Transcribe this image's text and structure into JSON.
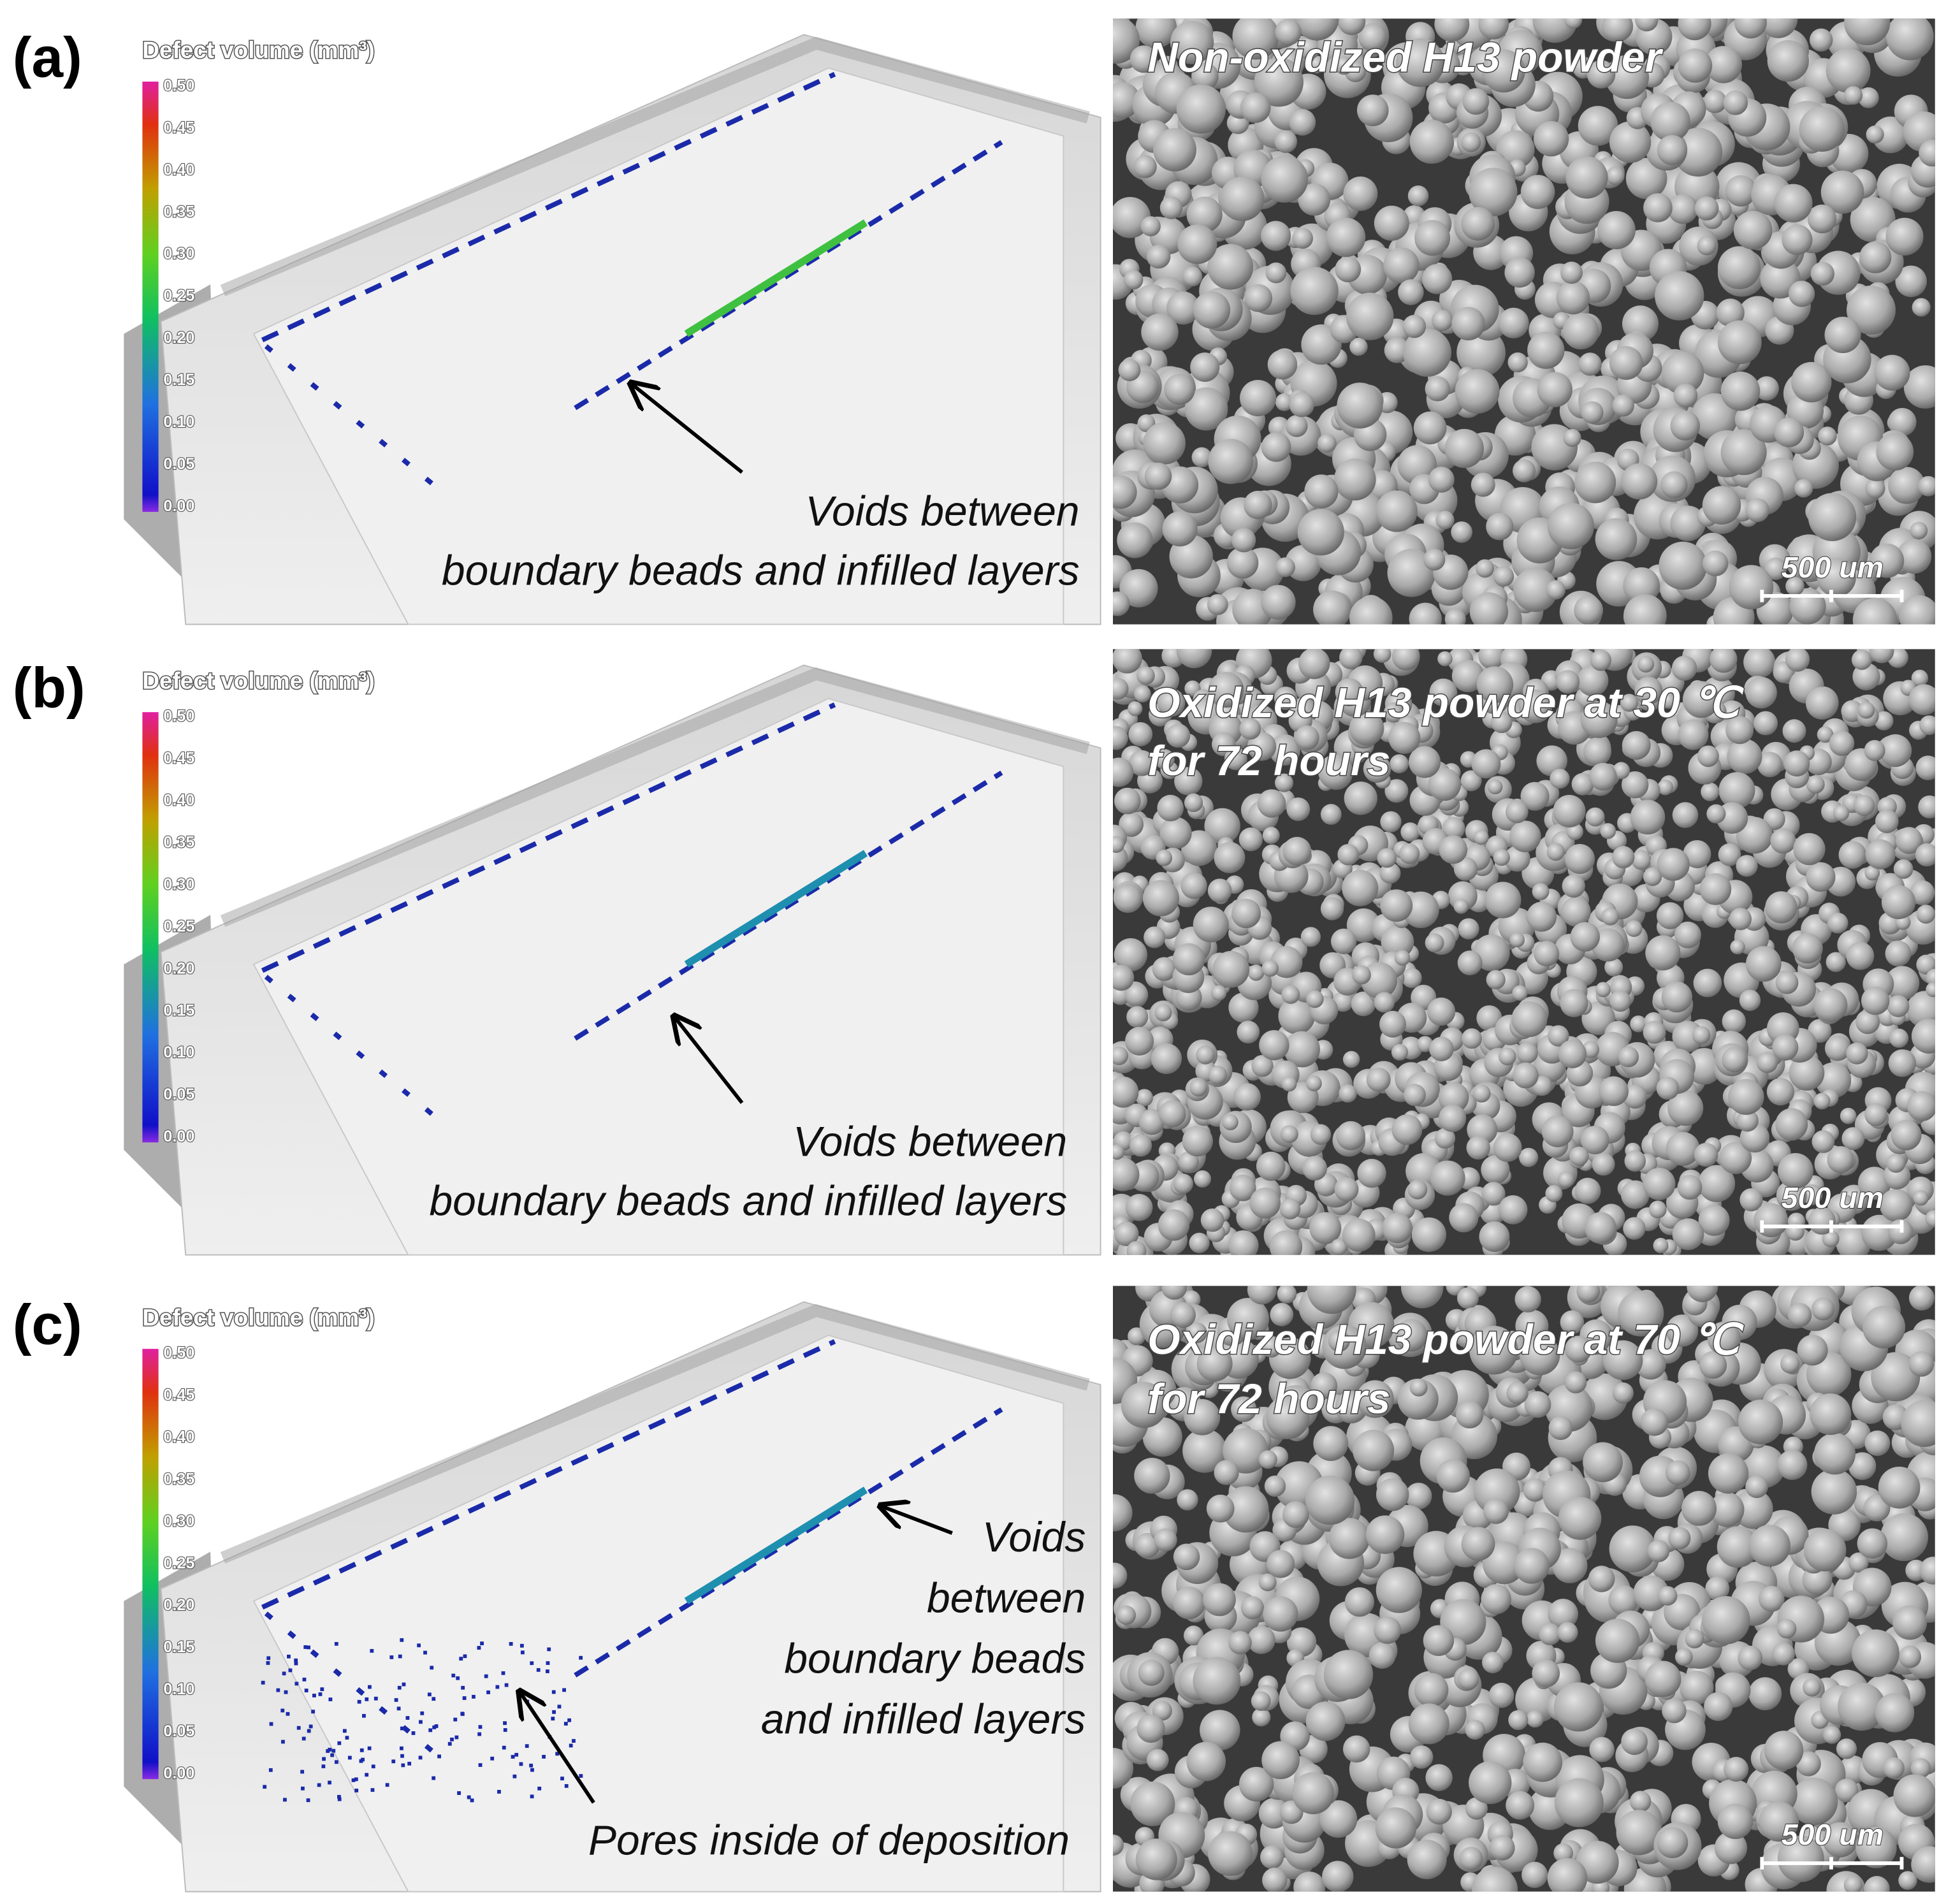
{
  "panels": [
    {
      "label": "(a)",
      "colorbar": {
        "title": "Defect volume (mm³)",
        "ticks": [
          "0.50",
          "0.45",
          "0.40",
          "0.35",
          "0.30",
          "0.25",
          "0.20",
          "0.15",
          "0.10",
          "0.05",
          "0.00"
        ]
      },
      "annotations": [
        [
          "Voids between",
          "boundary beads and infilled layers"
        ]
      ],
      "sem": {
        "caption": [
          "Non-oxidized H13 powder"
        ],
        "scale_bar": "500 um"
      }
    },
    {
      "label": "(b)",
      "colorbar": {
        "title": "Defect volume (mm³)",
        "ticks": [
          "0.50",
          "0.45",
          "0.40",
          "0.35",
          "0.30",
          "0.25",
          "0.20",
          "0.15",
          "0.10",
          "0.05",
          "0.00"
        ]
      },
      "annotations": [
        [
          "Voids between",
          "boundary beads and infilled layers"
        ]
      ],
      "sem": {
        "caption": [
          "Oxidized H13 powder at 30 ℃",
          "for 72 hours"
        ],
        "scale_bar": "500 um"
      }
    },
    {
      "label": "(c)",
      "colorbar": {
        "title": "Defect volume (mm³)",
        "ticks": [
          "0.50",
          "0.45",
          "0.40",
          "0.35",
          "0.30",
          "0.25",
          "0.20",
          "0.15",
          "0.10",
          "0.05",
          "0.00"
        ]
      },
      "annotations": [
        [
          "Voids",
          "between",
          "boundary beads",
          "and infilled layers"
        ],
        [
          "Pores inside of deposition"
        ]
      ],
      "sem": {
        "caption": [
          "Oxidized H13 powder at 70 ℃",
          "for 72 hours"
        ],
        "scale_bar": "500 um"
      }
    }
  ]
}
